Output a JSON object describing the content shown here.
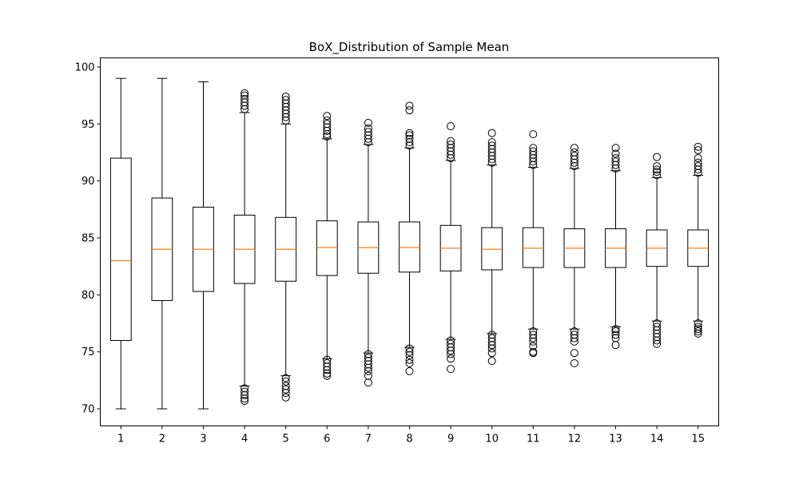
{
  "chart_data": {
    "type": "box",
    "title": "BoX_Distribution of Sample Mean",
    "xlabel": "",
    "ylabel": "",
    "ylim": [
      68.5,
      100.8
    ],
    "y_ticks": [
      70,
      75,
      80,
      85,
      90,
      95,
      100
    ],
    "grid": false,
    "colors": {
      "box": "#000000",
      "median": "#ff7f0e"
    },
    "categories": [
      "1",
      "2",
      "3",
      "4",
      "5",
      "6",
      "7",
      "8",
      "9",
      "10",
      "11",
      "12",
      "13",
      "14",
      "15"
    ],
    "boxes": [
      {
        "category": "1",
        "whisker_low": 70.0,
        "q1": 76.0,
        "median": 83.0,
        "q3": 92.0,
        "whisker_high": 99.0,
        "fliers": []
      },
      {
        "category": "2",
        "whisker_low": 70.0,
        "q1": 79.5,
        "median": 84.0,
        "q3": 88.5,
        "whisker_high": 99.0,
        "fliers": []
      },
      {
        "category": "3",
        "whisker_low": 70.0,
        "q1": 80.3,
        "median": 84.0,
        "q3": 87.7,
        "whisker_high": 98.7,
        "fliers": []
      },
      {
        "category": "4",
        "whisker_low": 72.0,
        "q1": 81.0,
        "median": 84.0,
        "q3": 87.0,
        "whisker_high": 96.0,
        "fliers": [
          71.8,
          71.5,
          71.2,
          70.9,
          70.7,
          96.3,
          96.6,
          96.9,
          97.2,
          97.5,
          97.7
        ]
      },
      {
        "category": "5",
        "whisker_low": 72.9,
        "q1": 81.2,
        "median": 84.0,
        "q3": 86.8,
        "whisker_high": 95.0,
        "fliers": [
          72.7,
          72.4,
          72.0,
          71.7,
          71.4,
          71.0,
          95.3,
          95.6,
          95.9,
          96.2,
          96.5,
          96.8,
          97.1,
          97.4
        ]
      },
      {
        "category": "6",
        "whisker_low": 74.4,
        "q1": 81.7,
        "median": 84.15,
        "q3": 86.5,
        "whisker_high": 93.7,
        "fliers": [
          74.3,
          74.0,
          73.7,
          73.4,
          73.1,
          72.9,
          93.9,
          94.1,
          94.4,
          94.7,
          95.0,
          95.3,
          95.7
        ]
      },
      {
        "category": "7",
        "whisker_low": 74.9,
        "q1": 81.9,
        "median": 84.15,
        "q3": 86.4,
        "whisker_high": 93.2,
        "fliers": [
          74.8,
          74.5,
          74.2,
          73.9,
          73.6,
          73.3,
          72.9,
          72.3,
          93.4,
          93.7,
          94.0,
          94.3,
          94.6,
          95.1
        ]
      },
      {
        "category": "8",
        "whisker_low": 75.4,
        "q1": 82.0,
        "median": 84.15,
        "q3": 86.4,
        "whisker_high": 92.9,
        "fliers": [
          75.3,
          75.0,
          74.7,
          74.3,
          74.0,
          73.3,
          93.1,
          93.4,
          93.7,
          94.0,
          94.2,
          96.2,
          96.6
        ]
      },
      {
        "category": "9",
        "whisker_low": 76.1,
        "q1": 82.1,
        "median": 84.1,
        "q3": 86.1,
        "whisker_high": 91.8,
        "fliers": [
          76.0,
          75.7,
          75.4,
          75.1,
          74.8,
          74.4,
          73.5,
          92.0,
          92.3,
          92.6,
          92.9,
          93.2,
          93.5,
          94.8
        ]
      },
      {
        "category": "10",
        "whisker_low": 76.6,
        "q1": 82.2,
        "median": 84.0,
        "q3": 85.9,
        "whisker_high": 91.4,
        "fliers": [
          76.5,
          76.2,
          75.9,
          75.6,
          75.3,
          74.9,
          74.2,
          91.6,
          91.9,
          92.2,
          92.5,
          92.8,
          93.1,
          93.4,
          94.2
        ]
      },
      {
        "category": "11",
        "whisker_low": 77.0,
        "q1": 82.4,
        "median": 84.1,
        "q3": 85.9,
        "whisker_high": 91.2,
        "fliers": [
          76.8,
          76.5,
          76.2,
          75.9,
          75.5,
          75.0,
          74.9,
          91.4,
          91.7,
          92.0,
          92.3,
          92.6,
          92.9,
          94.1
        ]
      },
      {
        "category": "12",
        "whisker_low": 77.0,
        "q1": 82.4,
        "median": 84.1,
        "q3": 85.8,
        "whisker_high": 91.1,
        "fliers": [
          76.8,
          76.5,
          76.2,
          75.9,
          74.9,
          74.0,
          91.3,
          91.6,
          91.9,
          92.2,
          92.5,
          92.9
        ]
      },
      {
        "category": "13",
        "whisker_low": 77.2,
        "q1": 82.4,
        "median": 84.1,
        "q3": 85.8,
        "whisker_high": 90.9,
        "fliers": [
          77.0,
          76.8,
          76.5,
          76.2,
          75.6,
          91.1,
          91.4,
          91.7,
          92.0,
          92.4,
          92.9
        ]
      },
      {
        "category": "14",
        "whisker_low": 77.7,
        "q1": 82.5,
        "median": 84.1,
        "q3": 85.7,
        "whisker_high": 90.3,
        "fliers": [
          77.5,
          77.2,
          76.9,
          76.6,
          76.3,
          76.0,
          75.7,
          90.5,
          90.8,
          91.0,
          91.3,
          92.1
        ]
      },
      {
        "category": "15",
        "whisker_low": 77.7,
        "q1": 82.5,
        "median": 84.1,
        "q3": 85.7,
        "whisker_high": 90.5,
        "fliers": [
          77.5,
          77.2,
          77.0,
          76.8,
          76.6,
          90.7,
          91.0,
          91.3,
          91.6,
          92.0,
          92.7,
          93.0
        ]
      }
    ]
  }
}
